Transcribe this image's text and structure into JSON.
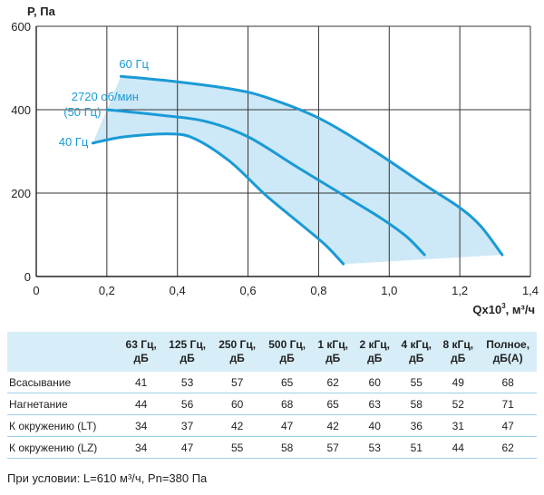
{
  "chart_data": {
    "type": "line",
    "ylabel": "P, Па",
    "xlabel_base": "Qx10",
    "xlabel_exp": "3",
    "xlabel_unit": ", м³/ч",
    "xlim": [
      0,
      1.4
    ],
    "ylim": [
      0,
      600
    ],
    "xticks": [
      0,
      0.2,
      0.4,
      0.6,
      0.8,
      1.0,
      1.2,
      1.4
    ],
    "xtick_labels": [
      "0",
      "0,2",
      "0,4",
      "0,6",
      "0,8",
      "1,0",
      "1,2",
      "1,4"
    ],
    "yticks": [
      0,
      200,
      400,
      600
    ],
    "ytick_labels": [
      "0",
      "200",
      "400",
      "600"
    ],
    "grid": true,
    "color": "#1a9ad6",
    "fill_color": "#c4e4f5",
    "series": [
      {
        "name": "60 Гц",
        "x": [
          0.24,
          0.4,
          0.55,
          0.65,
          0.8,
          0.95,
          1.1,
          1.2,
          1.26,
          1.32
        ],
        "y": [
          480,
          467,
          450,
          430,
          380,
          305,
          220,
          165,
          120,
          52
        ]
      },
      {
        "name": "2720 об/мин",
        "name2": "(50 Гц)",
        "x": [
          0.2,
          0.35,
          0.48,
          0.6,
          0.74,
          0.88,
          0.98,
          1.05,
          1.1
        ],
        "y": [
          400,
          387,
          372,
          335,
          262,
          190,
          138,
          95,
          52
        ]
      },
      {
        "name": "40 Гц",
        "x": [
          0.16,
          0.25,
          0.38,
          0.45,
          0.55,
          0.65,
          0.75,
          0.82,
          0.87
        ],
        "y": [
          320,
          335,
          342,
          330,
          275,
          195,
          125,
          75,
          30
        ]
      }
    ]
  },
  "noise_table": {
    "headers": [
      [
        "63 Гц,",
        "дБ"
      ],
      [
        "125 Гц,",
        "дБ"
      ],
      [
        "250 Гц,",
        "дБ"
      ],
      [
        "500 Гц,",
        "дБ"
      ],
      [
        "1 кГц,",
        "дБ"
      ],
      [
        "2 кГц,",
        "дБ"
      ],
      [
        "4 кГц,",
        "дБ"
      ],
      [
        "8 кГц,",
        "дБ"
      ],
      [
        "Полное,",
        "дБ(А)"
      ]
    ],
    "rows": [
      {
        "label": "Всасывание",
        "values": [
          "41",
          "53",
          "57",
          "65",
          "62",
          "60",
          "55",
          "49",
          "68"
        ]
      },
      {
        "label": "Нагнетание",
        "values": [
          "44",
          "56",
          "60",
          "68",
          "65",
          "63",
          "58",
          "52",
          "71"
        ]
      },
      {
        "label": "К окружению (LT)",
        "values": [
          "34",
          "37",
          "42",
          "47",
          "42",
          "40",
          "36",
          "31",
          "47"
        ]
      },
      {
        "label": "К окружению (LZ)",
        "values": [
          "34",
          "47",
          "55",
          "58",
          "57",
          "53",
          "51",
          "44",
          "62"
        ]
      }
    ]
  },
  "footnote": "При условии: L=610 м³/ч, Pn=380 Па"
}
